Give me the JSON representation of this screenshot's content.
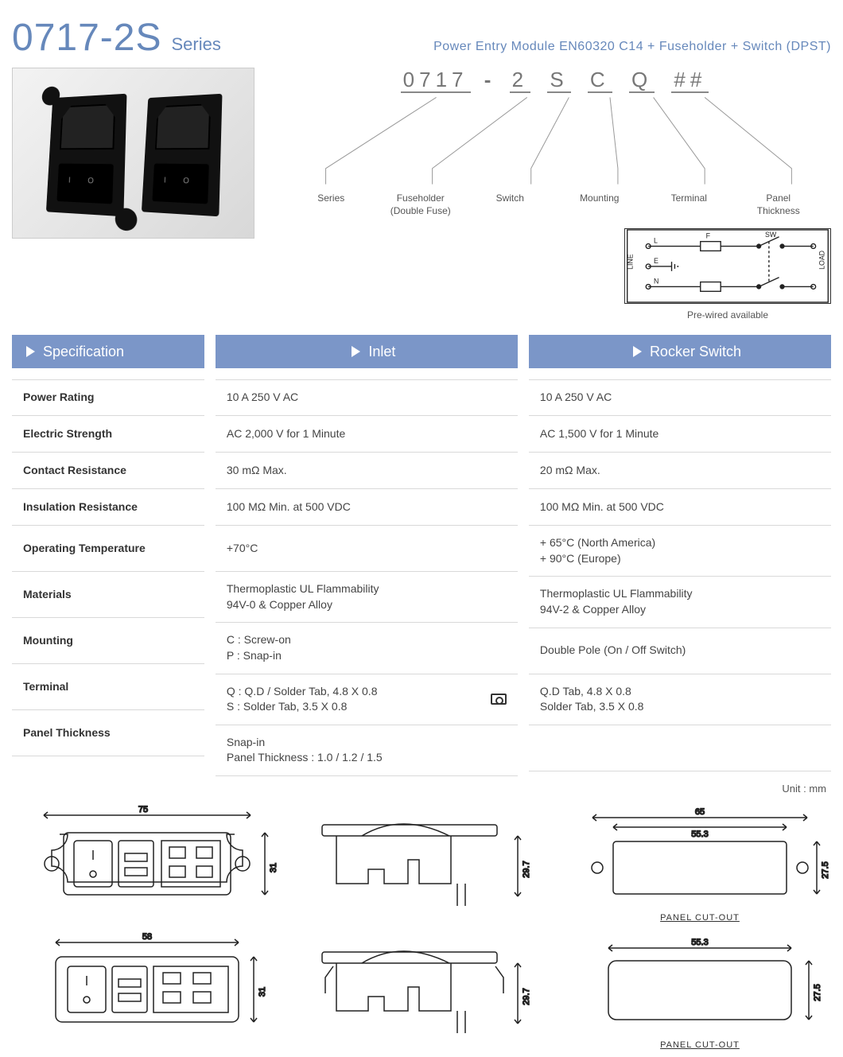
{
  "header": {
    "part": "0717-2S",
    "series": "Series",
    "subtitle": "Power Entry Module   EN60320 C14 + Fuseholder + Switch (DPST)"
  },
  "ordering": {
    "code_parts": [
      "0717",
      "-",
      "2",
      "S",
      "C",
      "Q",
      "##"
    ],
    "labels": [
      "Series",
      "Fuseholder\n(Double Fuse)",
      "Switch",
      "Mounting",
      "Terminal",
      "Panel\nThickness"
    ],
    "schematic_caption": "Pre-wired available",
    "schematic_labels": {
      "line": "LINE",
      "load": "LOAD",
      "L": "L",
      "E": "E",
      "N": "N",
      "F": "F",
      "SW": "SW"
    }
  },
  "columns": {
    "spec": "Specification",
    "inlet": "Inlet",
    "switch": "Rocker Switch"
  },
  "rows": [
    {
      "label": "Power Rating",
      "inlet": "10 A 250 V AC",
      "switch": "10 A 250 V AC"
    },
    {
      "label": "Electric Strength",
      "inlet": "AC 2,000 V for 1 Minute",
      "switch": "AC 1,500 V for 1 Minute"
    },
    {
      "label": "Contact Resistance",
      "inlet": "30 mΩ Max.",
      "switch": "20 mΩ Max."
    },
    {
      "label": "Insulation Resistance",
      "inlet": "100 MΩ Min. at 500 VDC",
      "switch": "100 MΩ Min. at 500 VDC"
    },
    {
      "label": "Operating Temperature",
      "inlet": "+70°C",
      "switch": "+ 65°C (North America)\n+ 90°C (Europe)",
      "tall": true
    },
    {
      "label": "Materials",
      "inlet": "Thermoplastic UL Flammability\n94V-0 & Copper Alloy",
      "switch": "Thermoplastic UL Flammability\n94V-2 & Copper Alloy",
      "tall": true
    },
    {
      "label": "Mounting",
      "inlet": "C : Screw-on\nP : Snap-in",
      "switch": "Double Pole (On / Off Switch)",
      "tall": true
    },
    {
      "label": "Terminal",
      "inlet": "Q : Q.D / Solder Tab, 4.8 X 0.8\nS : Solder Tab, 3.5 X 0.8",
      "switch": "Q.D Tab, 4.8 X 0.8\nSolder Tab, 3.5 X 0.8",
      "tall": true,
      "icon": true
    },
    {
      "label": "Panel Thickness",
      "inlet": "Snap-in\nPanel Thickness : 1.0 / 1.2 / 1.5",
      "switch": "",
      "tall": true
    }
  ],
  "unit": "Unit : mm",
  "drawings": {
    "d1": {
      "w": "75",
      "h": "31"
    },
    "d2": {
      "h": "29.7"
    },
    "d3": {
      "w": "65",
      "w2": "55.3",
      "h": "27.5",
      "label": "PANEL CUT-OUT"
    },
    "d4": {
      "w": "58",
      "h": "31"
    },
    "d5": {
      "h": "29.7"
    },
    "d6": {
      "w": "55.3",
      "h": "27.5",
      "label": "PANEL CUT-OUT"
    }
  },
  "colors": {
    "accent": "#7b96c8",
    "title": "#6688bb",
    "border": "#d9d9d9"
  }
}
